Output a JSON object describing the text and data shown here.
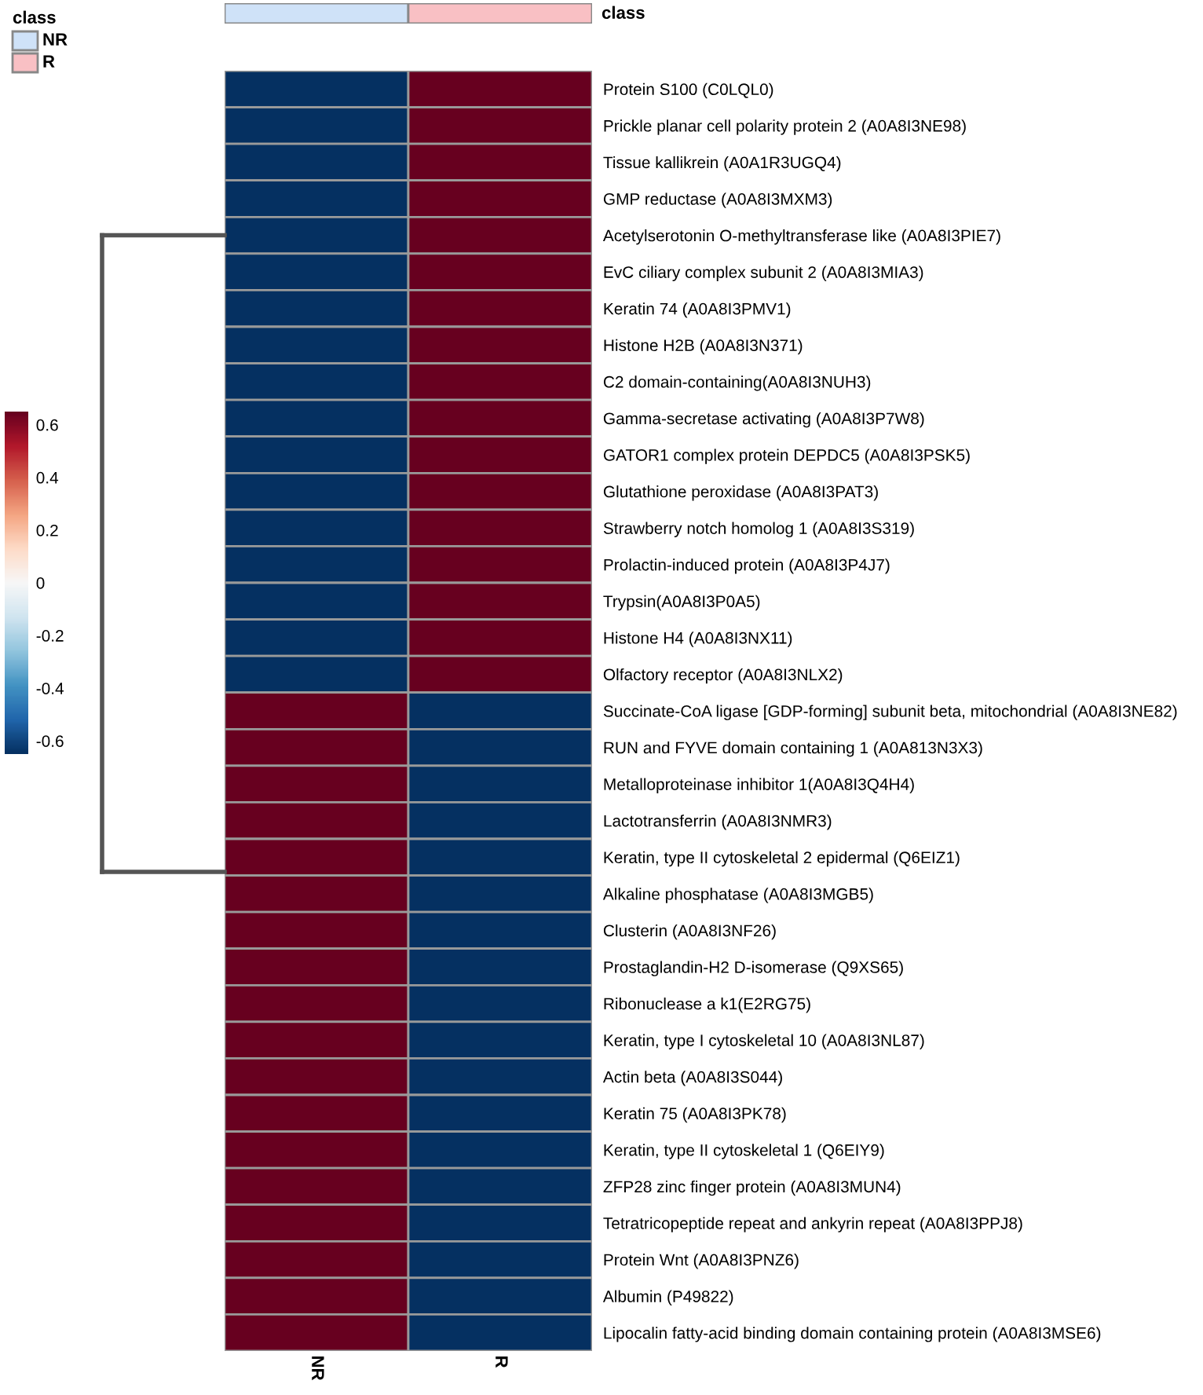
{
  "chart_data": {
    "type": "heatmap",
    "categories": [
      "NR",
      "R"
    ],
    "y_categories": [
      "Protein S100 (C0LQL0)",
      "Prickle planar cell polarity protein 2 (A0A8I3NE98)",
      "Tissue kallikrein (A0A1R3UGQ4)",
      "GMP reductase (A0A8I3MXM3)",
      "Acetylserotonin O-methyltransferase like (A0A8I3PIE7)",
      "EvC ciliary complex subunit 2 (A0A8I3MIA3)",
      "Keratin 74 (A0A8I3PMV1)",
      "Histone H2B (A0A8I3N371)",
      "C2 domain-containing(A0A8I3NUH3)",
      "Gamma-secretase activating (A0A8I3P7W8)",
      "GATOR1 complex protein DEPDC5 (A0A8I3PSK5)",
      "Glutathione peroxidase (A0A8I3PAT3)",
      "Strawberry notch homolog 1 (A0A8I3S319)",
      "Prolactin-induced protein (A0A8I3P4J7)",
      "Trypsin(A0A8I3P0A5)",
      "Histone H4 (A0A8I3NX11)",
      "Olfactory receptor (A0A8I3NLX2)",
      "Succinate-CoA ligase [GDP-forming] subunit beta, mitochondrial (A0A8I3NE82)",
      "RUN and FYVE domain containing 1 (A0A813N3X3)",
      "Metalloproteinase inhibitor 1(A0A8I3Q4H4)",
      "Lactotransferrin (A0A8I3NMR3)",
      "Keratin, type II cytoskeletal 2 epidermal (Q6EIZ1)",
      "Alkaline phosphatase (A0A8I3MGB5)",
      "Clusterin (A0A8I3NF26)",
      "Prostaglandin-H2 D-isomerase (Q9XS65)",
      "Ribonuclease a k1(E2RG75)",
      "Keratin, type I cytoskeletal 10 (A0A8I3NL87)",
      "Actin beta (A0A8I3S044)",
      "Keratin 75 (A0A8I3PK78)",
      "Keratin, type II cytoskeletal 1 (Q6EIY9)",
      "ZFP28 zinc finger protein (A0A8I3MUN4)",
      "Tetratricopeptide repeat and ankyrin repeat (A0A8I3PPJ8)",
      "Protein Wnt (A0A8I3PNZ6)",
      "Albumin (P49822)",
      "Lipocalin fatty-acid binding domain containing protein (A0A8I3MSE6)"
    ],
    "cells": [
      [
        -0.65,
        0.65
      ],
      [
        -0.65,
        0.65
      ],
      [
        -0.65,
        0.65
      ],
      [
        -0.65,
        0.65
      ],
      [
        -0.65,
        0.65
      ],
      [
        -0.65,
        0.65
      ],
      [
        -0.65,
        0.65
      ],
      [
        -0.65,
        0.65
      ],
      [
        -0.65,
        0.65
      ],
      [
        -0.65,
        0.65
      ],
      [
        -0.65,
        0.65
      ],
      [
        -0.65,
        0.65
      ],
      [
        -0.65,
        0.65
      ],
      [
        -0.65,
        0.65
      ],
      [
        -0.65,
        0.65
      ],
      [
        -0.65,
        0.65
      ],
      [
        -0.65,
        0.65
      ],
      [
        0.65,
        -0.65
      ],
      [
        0.65,
        -0.65
      ],
      [
        0.65,
        -0.65
      ],
      [
        0.65,
        -0.65
      ],
      [
        0.65,
        -0.65
      ],
      [
        0.65,
        -0.65
      ],
      [
        0.65,
        -0.65
      ],
      [
        0.65,
        -0.65
      ],
      [
        0.65,
        -0.65
      ],
      [
        0.65,
        -0.65
      ],
      [
        0.65,
        -0.65
      ],
      [
        0.65,
        -0.65
      ],
      [
        0.65,
        -0.65
      ],
      [
        0.65,
        -0.65
      ],
      [
        0.65,
        -0.65
      ],
      [
        0.65,
        -0.65
      ],
      [
        0.65,
        -0.65
      ],
      [
        0.65,
        -0.65
      ]
    ],
    "clim": [
      -0.65,
      0.65
    ],
    "cticks": [
      -0.6,
      -0.4,
      -0.2,
      0,
      0.2,
      0.4,
      0.6
    ],
    "legend_title": "class",
    "colors": [
      "#cfe2f8",
      "#f9c0c4"
    ],
    "annotations": [
      "class"
    ]
  }
}
